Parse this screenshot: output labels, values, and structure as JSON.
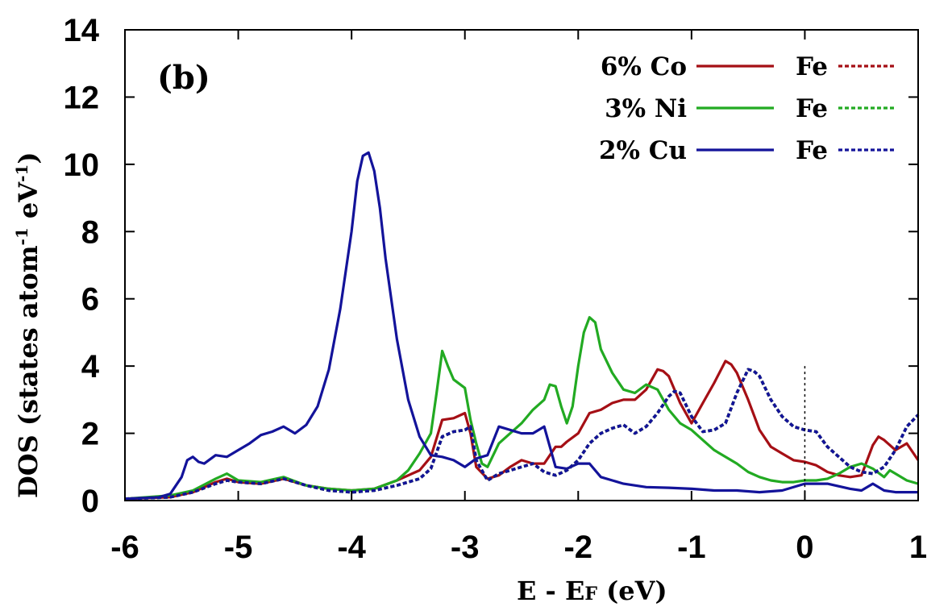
{
  "chart_data": {
    "type": "line",
    "panel_label": "(b)",
    "xlabel": "E - E",
    "xlabel_sub": "F",
    "xlabel_unit": " (eV)",
    "ylabel": "DOS (states atom",
    "ylabel_sup1": "-1",
    "ylabel_mid": " eV",
    "ylabel_sup2": "-1",
    "ylabel_end": ")",
    "xlim": [
      -6,
      1
    ],
    "ylim": [
      0,
      14
    ],
    "xticks": [
      -6,
      -5,
      -4,
      -3,
      -2,
      -1,
      0,
      1
    ],
    "yticks": [
      0,
      2,
      4,
      6,
      8,
      10,
      12,
      14
    ],
    "fermi_level": 0,
    "legend_position": "top-right",
    "series": [
      {
        "name": "6% Co",
        "color": "#a50f15",
        "dash": "solid",
        "x": [
          -6,
          -5.6,
          -5.4,
          -5.2,
          -5.1,
          -5,
          -4.8,
          -4.6,
          -4.4,
          -4.2,
          -4,
          -3.8,
          -3.6,
          -3.4,
          -3.3,
          -3.2,
          -3.1,
          -3.0,
          -2.95,
          -2.9,
          -2.8,
          -2.7,
          -2.6,
          -2.5,
          -2.4,
          -2.3,
          -2.2,
          -2.15,
          -2.1,
          -2.0,
          -1.9,
          -1.8,
          -1.7,
          -1.6,
          -1.5,
          -1.4,
          -1.3,
          -1.25,
          -1.2,
          -1.1,
          -1.0,
          -0.9,
          -0.8,
          -0.7,
          -0.65,
          -0.6,
          -0.5,
          -0.4,
          -0.3,
          -0.2,
          -0.1,
          0,
          0.1,
          0.2,
          0.3,
          0.4,
          0.5,
          0.6,
          0.65,
          0.7,
          0.8,
          0.9,
          1.0
        ],
        "y": [
          0.05,
          0.1,
          0.25,
          0.55,
          0.65,
          0.55,
          0.5,
          0.65,
          0.45,
          0.35,
          0.3,
          0.35,
          0.6,
          0.9,
          1.3,
          2.4,
          2.45,
          2.6,
          2.0,
          1.0,
          0.65,
          0.75,
          1.0,
          1.2,
          1.1,
          1.1,
          1.6,
          1.6,
          1.75,
          2.0,
          2.6,
          2.7,
          2.9,
          3.0,
          3.0,
          3.3,
          3.9,
          3.85,
          3.7,
          2.9,
          2.3,
          2.9,
          3.5,
          4.15,
          4.05,
          3.8,
          3.0,
          2.1,
          1.6,
          1.4,
          1.2,
          1.15,
          1.05,
          0.85,
          0.75,
          0.7,
          0.75,
          1.65,
          1.9,
          1.8,
          1.5,
          1.7,
          1.2
        ]
      },
      {
        "name": "3% Ni",
        "color": "#22aa22",
        "dash": "solid",
        "x": [
          -6,
          -5.6,
          -5.4,
          -5.2,
          -5.1,
          -5,
          -4.8,
          -4.6,
          -4.4,
          -4.2,
          -4,
          -3.8,
          -3.6,
          -3.5,
          -3.4,
          -3.3,
          -3.25,
          -3.2,
          -3.15,
          -3.1,
          -3.0,
          -2.95,
          -2.9,
          -2.85,
          -2.8,
          -2.7,
          -2.6,
          -2.5,
          -2.4,
          -2.3,
          -2.25,
          -2.2,
          -2.15,
          -2.1,
          -2.05,
          -2.0,
          -1.95,
          -1.9,
          -1.85,
          -1.8,
          -1.7,
          -1.6,
          -1.5,
          -1.4,
          -1.3,
          -1.2,
          -1.1,
          -1.0,
          -0.9,
          -0.8,
          -0.7,
          -0.6,
          -0.5,
          -0.4,
          -0.3,
          -0.2,
          -0.1,
          0,
          0.1,
          0.2,
          0.3,
          0.4,
          0.5,
          0.6,
          0.7,
          0.75,
          0.8,
          0.9,
          1.0
        ],
        "y": [
          0.05,
          0.15,
          0.3,
          0.65,
          0.8,
          0.6,
          0.55,
          0.7,
          0.45,
          0.35,
          0.3,
          0.35,
          0.6,
          0.9,
          1.4,
          2.0,
          3.2,
          4.45,
          4.0,
          3.6,
          3.35,
          2.4,
          1.7,
          1.1,
          1.0,
          1.7,
          2.0,
          2.3,
          2.7,
          3.0,
          3.45,
          3.4,
          2.8,
          2.3,
          2.8,
          4.0,
          5.0,
          5.45,
          5.3,
          4.5,
          3.8,
          3.3,
          3.2,
          3.45,
          3.3,
          2.7,
          2.3,
          2.1,
          1.8,
          1.5,
          1.3,
          1.1,
          0.85,
          0.7,
          0.6,
          0.55,
          0.55,
          0.6,
          0.6,
          0.65,
          0.8,
          1.0,
          1.1,
          0.95,
          0.7,
          0.9,
          0.8,
          0.6,
          0.5
        ]
      },
      {
        "name": "2% Cu",
        "color": "#13139a",
        "dash": "solid",
        "x": [
          -6,
          -5.7,
          -5.6,
          -5.5,
          -5.45,
          -5.4,
          -5.35,
          -5.3,
          -5.2,
          -5.1,
          -5.0,
          -4.9,
          -4.8,
          -4.7,
          -4.6,
          -4.5,
          -4.4,
          -4.3,
          -4.2,
          -4.1,
          -4.0,
          -3.95,
          -3.9,
          -3.85,
          -3.8,
          -3.75,
          -3.7,
          -3.6,
          -3.5,
          -3.4,
          -3.3,
          -3.2,
          -3.1,
          -3.0,
          -2.9,
          -2.8,
          -2.7,
          -2.6,
          -2.5,
          -2.4,
          -2.3,
          -2.2,
          -2.1,
          -2.0,
          -1.9,
          -1.8,
          -1.6,
          -1.4,
          -1.2,
          -1.0,
          -0.8,
          -0.6,
          -0.4,
          -0.2,
          0,
          0.2,
          0.4,
          0.5,
          0.6,
          0.7,
          0.8,
          1.0
        ],
        "y": [
          0.05,
          0.1,
          0.2,
          0.7,
          1.2,
          1.3,
          1.15,
          1.1,
          1.35,
          1.3,
          1.5,
          1.7,
          1.95,
          2.05,
          2.2,
          2.0,
          2.25,
          2.8,
          3.9,
          5.7,
          8.0,
          9.5,
          10.25,
          10.35,
          9.8,
          8.7,
          7.2,
          4.8,
          3.0,
          1.9,
          1.35,
          1.3,
          1.2,
          1.0,
          1.25,
          1.35,
          2.2,
          2.1,
          2.0,
          2.0,
          2.2,
          1.0,
          0.95,
          1.1,
          1.1,
          0.7,
          0.5,
          0.4,
          0.38,
          0.35,
          0.3,
          0.3,
          0.25,
          0.3,
          0.5,
          0.5,
          0.35,
          0.3,
          0.5,
          0.3,
          0.25,
          0.25
        ]
      },
      {
        "name": "Fe (6% Co)",
        "color": "#a50f15",
        "dash": "dashed",
        "x": [
          -6,
          -5.6,
          -5.4,
          -5.2,
          -5.1,
          -5,
          -4.8,
          -4.6,
          -4.4,
          -4.2,
          -4,
          -3.8,
          -3.6,
          -3.4,
          -3.3,
          -3.2,
          -3.1,
          -3.0,
          -2.95,
          -2.9,
          -2.8,
          -2.7,
          -2.6,
          -2.5,
          -2.4,
          -2.3,
          -2.2,
          -2.1,
          -2.0,
          -1.9,
          -1.8,
          -1.7,
          -1.6,
          -1.5,
          -1.4,
          -1.3,
          -1.2,
          -1.15,
          -1.1,
          -1.0,
          -0.9,
          -0.8,
          -0.7,
          -0.6,
          -0.5,
          -0.45,
          -0.4,
          -0.3,
          -0.2,
          -0.1,
          0,
          0.1,
          0.2,
          0.3,
          0.4,
          0.5,
          0.6,
          0.7,
          0.8,
          0.9,
          1.0
        ],
        "y": [
          0.05,
          0.1,
          0.25,
          0.5,
          0.6,
          0.55,
          0.5,
          0.65,
          0.45,
          0.3,
          0.25,
          0.3,
          0.45,
          0.65,
          0.95,
          1.9,
          2.05,
          2.1,
          2.2,
          1.2,
          0.6,
          0.8,
          0.9,
          1.0,
          1.1,
          0.85,
          0.75,
          0.9,
          1.2,
          1.7,
          2.0,
          2.15,
          2.25,
          2.0,
          2.2,
          2.6,
          3.1,
          3.25,
          3.2,
          2.5,
          2.05,
          2.1,
          2.3,
          3.2,
          3.9,
          3.85,
          3.7,
          3.0,
          2.5,
          2.2,
          2.1,
          2.05,
          1.6,
          1.3,
          1.0,
          0.85,
          0.8,
          1.0,
          1.5,
          2.2,
          2.55
        ]
      },
      {
        "name": "Fe (3% Ni)",
        "color": "#22aa22",
        "dash": "dashed",
        "x": [
          -6,
          -5.6,
          -5.4,
          -5.2,
          -5.1,
          -5,
          -4.8,
          -4.6,
          -4.4,
          -4.2,
          -4,
          -3.8,
          -3.6,
          -3.4,
          -3.3,
          -3.2,
          -3.1,
          -3.0,
          -2.95,
          -2.9,
          -2.8,
          -2.7,
          -2.6,
          -2.5,
          -2.4,
          -2.3,
          -2.2,
          -2.1,
          -2.0,
          -1.9,
          -1.8,
          -1.7,
          -1.6,
          -1.5,
          -1.4,
          -1.3,
          -1.2,
          -1.15,
          -1.1,
          -1.0,
          -0.9,
          -0.8,
          -0.7,
          -0.6,
          -0.5,
          -0.45,
          -0.4,
          -0.3,
          -0.2,
          -0.1,
          0,
          0.1,
          0.2,
          0.3,
          0.4,
          0.5,
          0.6,
          0.7,
          0.8,
          0.9,
          1.0
        ],
        "y": [
          0.05,
          0.1,
          0.25,
          0.5,
          0.6,
          0.55,
          0.5,
          0.65,
          0.45,
          0.3,
          0.25,
          0.3,
          0.45,
          0.65,
          0.95,
          1.9,
          2.05,
          2.1,
          2.2,
          1.2,
          0.6,
          0.8,
          0.9,
          1.0,
          1.1,
          0.85,
          0.75,
          0.9,
          1.2,
          1.7,
          2.0,
          2.15,
          2.25,
          2.0,
          2.2,
          2.6,
          3.1,
          3.25,
          3.2,
          2.5,
          2.05,
          2.1,
          2.3,
          3.2,
          3.9,
          3.85,
          3.7,
          3.0,
          2.5,
          2.2,
          2.1,
          2.05,
          1.6,
          1.3,
          1.0,
          0.85,
          0.8,
          1.0,
          1.5,
          2.2,
          2.55
        ]
      },
      {
        "name": "Fe (2% Cu)",
        "color": "#13139a",
        "dash": "dashed",
        "x": [
          -6,
          -5.6,
          -5.4,
          -5.2,
          -5.1,
          -5,
          -4.8,
          -4.6,
          -4.4,
          -4.2,
          -4,
          -3.8,
          -3.6,
          -3.4,
          -3.3,
          -3.2,
          -3.1,
          -3.0,
          -2.95,
          -2.9,
          -2.8,
          -2.7,
          -2.6,
          -2.5,
          -2.4,
          -2.3,
          -2.2,
          -2.1,
          -2.0,
          -1.9,
          -1.8,
          -1.7,
          -1.6,
          -1.5,
          -1.4,
          -1.3,
          -1.2,
          -1.15,
          -1.1,
          -1.0,
          -0.9,
          -0.8,
          -0.7,
          -0.6,
          -0.5,
          -0.45,
          -0.4,
          -0.3,
          -0.2,
          -0.1,
          0,
          0.1,
          0.2,
          0.3,
          0.4,
          0.5,
          0.6,
          0.7,
          0.8,
          0.9,
          1.0
        ],
        "y": [
          0.05,
          0.1,
          0.25,
          0.5,
          0.6,
          0.55,
          0.5,
          0.65,
          0.45,
          0.3,
          0.25,
          0.3,
          0.45,
          0.65,
          0.95,
          1.9,
          2.05,
          2.1,
          2.2,
          1.2,
          0.6,
          0.8,
          0.9,
          1.0,
          1.1,
          0.85,
          0.75,
          0.9,
          1.2,
          1.7,
          2.0,
          2.15,
          2.25,
          2.0,
          2.2,
          2.6,
          3.1,
          3.25,
          3.2,
          2.5,
          2.05,
          2.1,
          2.3,
          3.2,
          3.9,
          3.85,
          3.7,
          3.0,
          2.5,
          2.2,
          2.1,
          2.05,
          1.6,
          1.3,
          1.0,
          0.85,
          0.8,
          1.0,
          1.5,
          2.2,
          2.55
        ]
      }
    ],
    "legend": [
      {
        "label": "6% Co",
        "fe_label": "Fe",
        "color": "#a50f15"
      },
      {
        "label": "3% Ni",
        "fe_label": "Fe",
        "color": "#22aa22"
      },
      {
        "label": "2% Cu",
        "fe_label": "Fe",
        "color": "#13139a"
      }
    ]
  }
}
